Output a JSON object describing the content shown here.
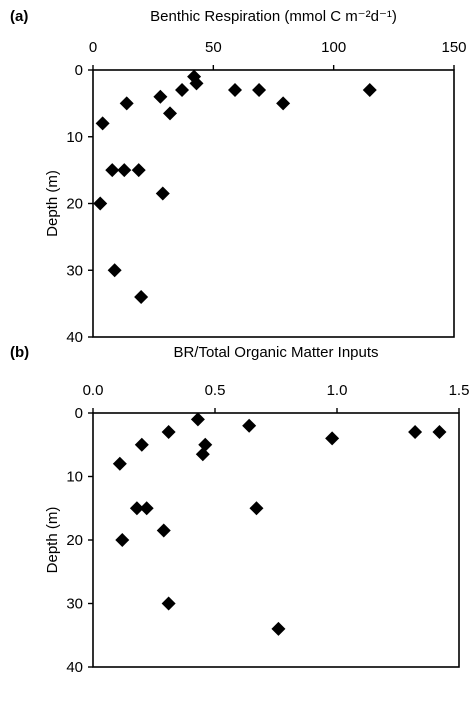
{
  "chart_data": [
    {
      "panel_label": "(a)",
      "type": "scatter",
      "title": "Benthic Respiration (mmol C m⁻²d⁻¹)",
      "xlabel_position": "top",
      "ylabel": "Depth (m)",
      "xlim": [
        0,
        150
      ],
      "ylim": [
        40,
        0
      ],
      "y_inverted": true,
      "x_ticks": [
        0,
        50,
        100,
        150
      ],
      "x_tick_labels": [
        "0",
        "50",
        "100",
        "150"
      ],
      "y_ticks": [
        0,
        10,
        20,
        30,
        40
      ],
      "y_tick_labels": [
        "0",
        "10",
        "20",
        "30",
        "40"
      ],
      "marker": "diamond",
      "marker_color": "#000000",
      "grid": false,
      "points": [
        {
          "x": 42,
          "y": 1
        },
        {
          "x": 43,
          "y": 2
        },
        {
          "x": 59,
          "y": 3
        },
        {
          "x": 69,
          "y": 3
        },
        {
          "x": 115,
          "y": 3
        },
        {
          "x": 37,
          "y": 3
        },
        {
          "x": 28,
          "y": 4
        },
        {
          "x": 14,
          "y": 5
        },
        {
          "x": 79,
          "y": 5
        },
        {
          "x": 32,
          "y": 6.5
        },
        {
          "x": 4,
          "y": 8
        },
        {
          "x": 8,
          "y": 15
        },
        {
          "x": 13,
          "y": 15
        },
        {
          "x": 19,
          "y": 15
        },
        {
          "x": 29,
          "y": 18.5
        },
        {
          "x": 3,
          "y": 20
        },
        {
          "x": 9,
          "y": 30
        },
        {
          "x": 20,
          "y": 34
        }
      ]
    },
    {
      "panel_label": "(b)",
      "type": "scatter",
      "title": "BR/Total Organic Matter Inputs",
      "xlabel_position": "top",
      "ylabel": "Depth (m)",
      "xlim": [
        0,
        1.5
      ],
      "ylim": [
        40,
        0
      ],
      "y_inverted": true,
      "x_ticks": [
        0,
        0.5,
        1.0,
        1.5
      ],
      "x_tick_labels": [
        "0.0",
        "0.5",
        "1.0",
        "1.5"
      ],
      "y_ticks": [
        0,
        10,
        20,
        30,
        40
      ],
      "y_tick_labels": [
        "0",
        "10",
        "20",
        "30",
        "40"
      ],
      "marker": "diamond",
      "marker_color": "#000000",
      "grid": false,
      "points": [
        {
          "x": 0.43,
          "y": 1
        },
        {
          "x": 0.64,
          "y": 2
        },
        {
          "x": 0.31,
          "y": 3
        },
        {
          "x": 1.32,
          "y": 3
        },
        {
          "x": 1.42,
          "y": 3
        },
        {
          "x": 0.98,
          "y": 4
        },
        {
          "x": 0.2,
          "y": 5
        },
        {
          "x": 0.46,
          "y": 5
        },
        {
          "x": 0.45,
          "y": 6.5
        },
        {
          "x": 0.11,
          "y": 8
        },
        {
          "x": 0.18,
          "y": 15
        },
        {
          "x": 0.22,
          "y": 15
        },
        {
          "x": 0.67,
          "y": 15
        },
        {
          "x": 0.29,
          "y": 18.5
        },
        {
          "x": 0.12,
          "y": 20
        },
        {
          "x": 0.31,
          "y": 30
        },
        {
          "x": 0.76,
          "y": 34
        }
      ]
    }
  ]
}
